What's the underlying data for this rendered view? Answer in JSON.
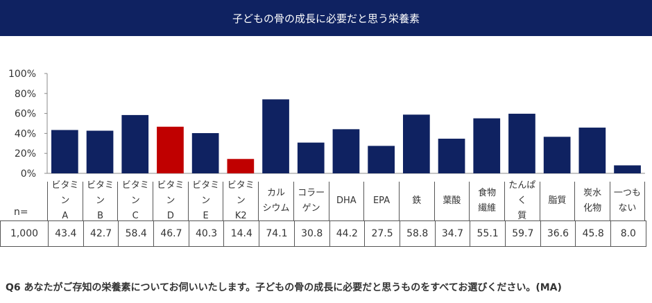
{
  "title": "子どもの骨の成長に必要だと思う栄養素",
  "question": "Q6  あなたがご存知の栄養素についてお伺いいたします。子どもの骨の成長に必要だと思うものをすべてお選びください。(MA)",
  "n_label": "n=",
  "n_value": "1,000",
  "colors": {
    "default": "#0f2261",
    "highlight": "#c00000",
    "header": "#0f2261"
  },
  "chart_data": {
    "type": "bar",
    "categories": [
      "ビタミン\nA",
      "ビタミン\nB",
      "ビタミン\nC",
      "ビタミン\nD",
      "ビタミン\nE",
      "ビタミン\nK2",
      "カル\nシウム",
      "コラー\nゲン",
      "DHA",
      "EPA",
      "鉄",
      "葉酸",
      "食物\n繊維",
      "たんぱく\n質",
      "脂質",
      "炭水\n化物",
      "一つも\nない"
    ],
    "values": [
      43.4,
      42.7,
      58.4,
      46.7,
      40.3,
      14.4,
      74.1,
      30.8,
      44.2,
      27.5,
      58.8,
      34.7,
      55.1,
      59.7,
      36.6,
      45.8,
      8.0
    ],
    "value_labels": [
      "43.4",
      "42.7",
      "58.4",
      "46.7",
      "40.3",
      "14.4",
      "74.1",
      "30.8",
      "44.2",
      "27.5",
      "58.8",
      "34.7",
      "55.1",
      "59.7",
      "36.6",
      "45.8",
      "8.0"
    ],
    "highlighted": [
      "ビタミン\nD",
      "ビタミン\nK2"
    ],
    "ylim": [
      0,
      100
    ],
    "yticks": [
      "0%",
      "20%",
      "40%",
      "60%",
      "80%",
      "100%"
    ],
    "grid": false,
    "legend": "none"
  }
}
